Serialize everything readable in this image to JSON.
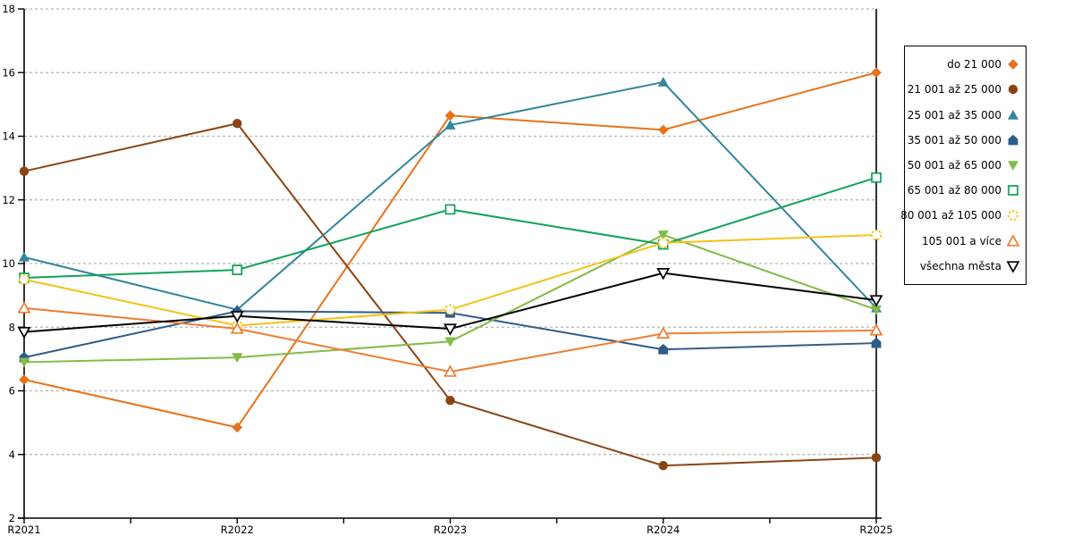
{
  "chart_data": {
    "type": "line",
    "title": "",
    "xlabel": "",
    "ylabel": "",
    "x_labels": [
      "R2021",
      "R2022",
      "R2023",
      "R2024",
      "R2025"
    ],
    "ylim": [
      2,
      18
    ],
    "y_ticks": [
      2,
      4,
      6,
      8,
      10,
      12,
      14,
      16,
      18
    ],
    "grid": "horizontal-dotted",
    "grid_color": "#b3b3b3",
    "axis_color": "#000000",
    "legend_position": "right-outside",
    "series": [
      {
        "name": "do 21 000",
        "marker": "diamond",
        "marker_fill": "solid",
        "color": "#e8731a",
        "values": [
          6.35,
          4.85,
          14.65,
          14.2,
          16.0
        ]
      },
      {
        "name": "21 001 až 25 000",
        "marker": "circle",
        "marker_fill": "solid",
        "color": "#8a4413",
        "values": [
          12.9,
          14.4,
          5.7,
          3.65,
          3.9
        ]
      },
      {
        "name": "25 001 až 35 000",
        "marker": "triangle-up",
        "marker_fill": "solid",
        "color": "#31859c",
        "values": [
          10.2,
          8.55,
          14.35,
          15.7,
          8.6
        ]
      },
      {
        "name": "35 001 až 50 000",
        "marker": "pentagon",
        "marker_fill": "solid",
        "color": "#2e5c8a",
        "values": [
          7.05,
          8.5,
          8.45,
          7.3,
          7.5
        ]
      },
      {
        "name": "50 001 až 65 000",
        "marker": "triangle-down",
        "marker_fill": "solid",
        "color": "#82bb47",
        "values": [
          6.9,
          7.05,
          7.55,
          10.9,
          8.55
        ]
      },
      {
        "name": "65 001 až 80 000",
        "marker": "square",
        "marker_fill": "open",
        "color": "#11a25a",
        "values": [
          9.55,
          9.8,
          11.7,
          10.6,
          12.7
        ]
      },
      {
        "name": "80 001 až 105 000",
        "marker": "circle-dashed",
        "marker_fill": "open",
        "color": "#f5c211",
        "values": [
          9.5,
          8.05,
          8.55,
          10.65,
          10.9
        ]
      },
      {
        "name": "105 001 a více",
        "marker": "triangle-up",
        "marker_fill": "open",
        "color": "#ed7d31",
        "values": [
          8.6,
          7.95,
          6.6,
          7.8,
          7.9
        ]
      },
      {
        "name": "všechna města",
        "marker": "triangle-down",
        "marker_fill": "open",
        "color": "#000000",
        "values": [
          7.85,
          8.35,
          7.95,
          9.7,
          8.85
        ]
      }
    ]
  }
}
